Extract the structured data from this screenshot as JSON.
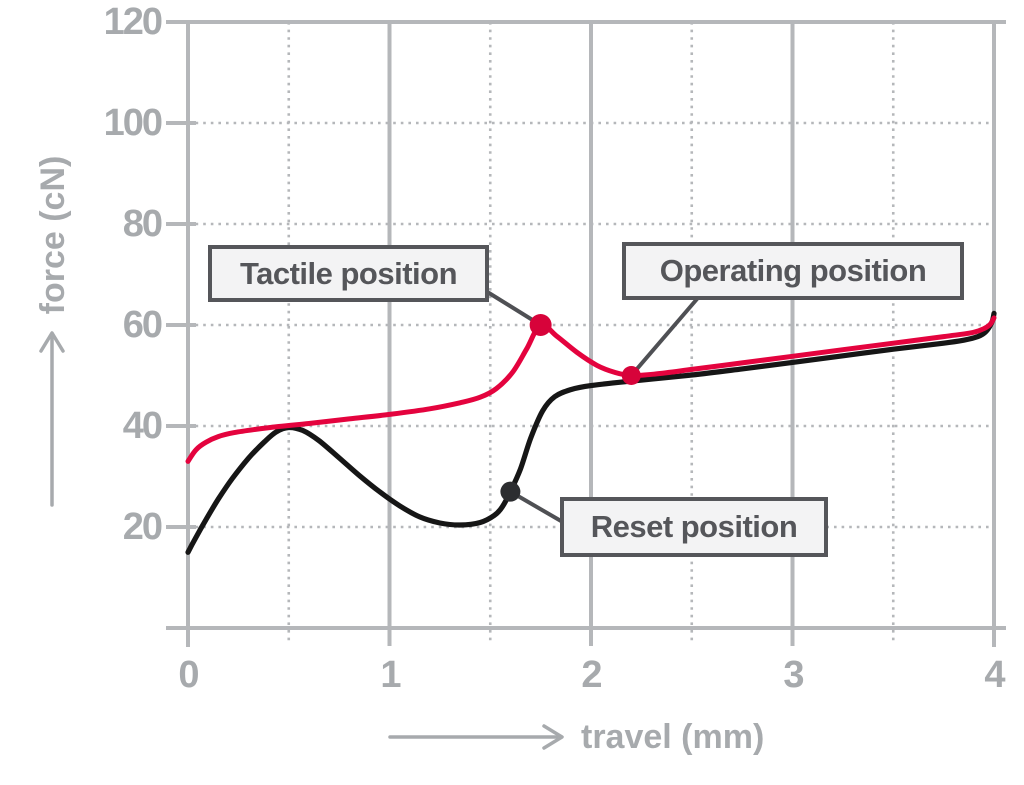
{
  "chart_data": {
    "type": "line",
    "title": "",
    "xlabel": "travel (mm)",
    "ylabel": "force (cN)",
    "xlim": [
      0,
      4
    ],
    "ylim": [
      0,
      120
    ],
    "x_ticks": [
      0,
      1,
      2,
      3,
      4
    ],
    "x_minor_gridlines": [
      0.5,
      1.5,
      2.5,
      3.5
    ],
    "y_ticks": [
      20,
      40,
      60,
      80,
      100,
      120
    ],
    "grid": {
      "vertical_major": "solid",
      "vertical_minor": "dotted",
      "horizontal": "dotted",
      "frame_top": "solid",
      "frame_right": "solid"
    },
    "colors": {
      "red_curve": "#e4033e",
      "black_curve": "#161616",
      "grid": "#b5b7ba",
      "axis_text": "#a7aaad",
      "annotation": "#55565a",
      "annotation_bg": "#f3f3f4"
    },
    "series": [
      {
        "name": "red curve",
        "color": "#e4033e",
        "points": [
          [
            0,
            33
          ],
          [
            0.04,
            35.3
          ],
          [
            0.09,
            36.8
          ],
          [
            0.15,
            37.9
          ],
          [
            0.23,
            38.7
          ],
          [
            0.33,
            39.3
          ],
          [
            0.45,
            39.9
          ],
          [
            0.6,
            40.5
          ],
          [
            0.8,
            41.4
          ],
          [
            1.0,
            42.3
          ],
          [
            1.2,
            43.4
          ],
          [
            1.35,
            44.6
          ],
          [
            1.45,
            45.7
          ],
          [
            1.53,
            47.4
          ],
          [
            1.61,
            50.6
          ],
          [
            1.68,
            55.2
          ],
          [
            1.75,
            60
          ],
          [
            1.83,
            57.8
          ],
          [
            1.93,
            54.6
          ],
          [
            2.03,
            52
          ],
          [
            2.12,
            50.6
          ],
          [
            2.2,
            50
          ],
          [
            2.32,
            50.3
          ],
          [
            2.5,
            51.2
          ],
          [
            2.75,
            52.5
          ],
          [
            3.0,
            53.8
          ],
          [
            3.25,
            55.1
          ],
          [
            3.5,
            56.4
          ],
          [
            3.75,
            57.7
          ],
          [
            3.88,
            58.4
          ],
          [
            3.94,
            59.1
          ],
          [
            3.98,
            60.1
          ],
          [
            4.0,
            61.4
          ]
        ]
      },
      {
        "name": "black curve",
        "color": "#161616",
        "points": [
          [
            0,
            15
          ],
          [
            0.04,
            18
          ],
          [
            0.09,
            21.5
          ],
          [
            0.15,
            25.5
          ],
          [
            0.22,
            29.6
          ],
          [
            0.3,
            33.6
          ],
          [
            0.38,
            36.9
          ],
          [
            0.44,
            38.9
          ],
          [
            0.5,
            39.7
          ],
          [
            0.57,
            39.1
          ],
          [
            0.65,
            37.1
          ],
          [
            0.75,
            33.7
          ],
          [
            0.85,
            30.2
          ],
          [
            0.95,
            27
          ],
          [
            1.05,
            24.2
          ],
          [
            1.15,
            22
          ],
          [
            1.25,
            20.8
          ],
          [
            1.35,
            20.4
          ],
          [
            1.45,
            20.9
          ],
          [
            1.52,
            22.3
          ],
          [
            1.56,
            24
          ],
          [
            1.6,
            27
          ],
          [
            1.65,
            31.5
          ],
          [
            1.7,
            37.5
          ],
          [
            1.76,
            43
          ],
          [
            1.82,
            45.8
          ],
          [
            1.9,
            47.2
          ],
          [
            2.0,
            48
          ],
          [
            2.2,
            48.9
          ],
          [
            2.5,
            50.1
          ],
          [
            2.75,
            51.3
          ],
          [
            3.0,
            52.6
          ],
          [
            3.25,
            53.9
          ],
          [
            3.5,
            55.2
          ],
          [
            3.75,
            56.4
          ],
          [
            3.85,
            57
          ],
          [
            3.92,
            57.7
          ],
          [
            3.96,
            58.7
          ],
          [
            3.99,
            60.6
          ],
          [
            4.0,
            62.3
          ]
        ]
      }
    ],
    "annotations": [
      {
        "label": "Tactile position",
        "x": 1.75,
        "y": 60,
        "series_index": 0
      },
      {
        "label": "Operating position",
        "x": 2.2,
        "y": 50,
        "series_index": 0
      },
      {
        "label": "Reset position",
        "x": 1.6,
        "y": 27,
        "series_index": 1
      }
    ]
  }
}
